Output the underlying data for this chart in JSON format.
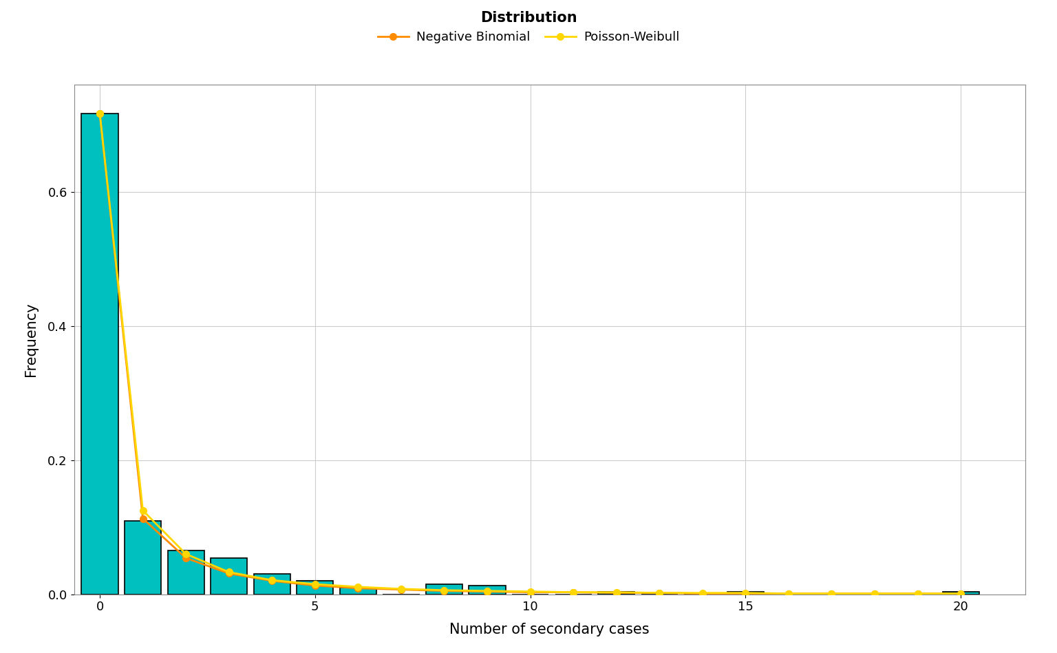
{
  "bar_x": [
    0,
    1,
    2,
    3,
    4,
    5,
    6,
    7,
    8,
    9,
    10,
    11,
    12,
    13,
    14,
    15,
    16,
    17,
    18,
    19,
    20
  ],
  "bar_heights": [
    0.717,
    0.109,
    0.065,
    0.054,
    0.03,
    0.02,
    0.01,
    0.0,
    0.015,
    0.013,
    0.0,
    0.0,
    0.004,
    0.0,
    0.0,
    0.004,
    0.0,
    0.0,
    0.0,
    0.0,
    0.004
  ],
  "bar_color": "#00BFBF",
  "bar_edgecolor": "#000000",
  "bar_width": 0.85,
  "neg_binom_x": [
    0,
    1,
    2,
    3,
    4,
    5,
    6,
    7,
    8,
    9,
    10,
    11,
    12,
    13,
    14,
    15,
    16,
    17,
    18,
    19,
    20
  ],
  "neg_binom_y": [
    0.717,
    0.113,
    0.054,
    0.031,
    0.02,
    0.013,
    0.009,
    0.007,
    0.005,
    0.004,
    0.003,
    0.003,
    0.002,
    0.002,
    0.001,
    0.001,
    0.001,
    0.001,
    0.001,
    0.001,
    0.001
  ],
  "neg_binom_color": "#FF8C00",
  "poisson_weibull_x": [
    0,
    1,
    2,
    3,
    4,
    5,
    6,
    7,
    8,
    9,
    10,
    11,
    12,
    13,
    14,
    15,
    16,
    17,
    18,
    19,
    20
  ],
  "poisson_weibull_y": [
    0.717,
    0.125,
    0.06,
    0.033,
    0.021,
    0.015,
    0.011,
    0.008,
    0.006,
    0.005,
    0.004,
    0.003,
    0.003,
    0.002,
    0.002,
    0.002,
    0.001,
    0.001,
    0.001,
    0.001,
    0.001
  ],
  "poisson_weibull_color": "#FFD700",
  "line_style": "-",
  "marker_style": "o",
  "marker_size": 7,
  "line_width": 2.0,
  "xlabel": "Number of secondary cases",
  "ylabel": "Frequency",
  "xlabel_fontsize": 15,
  "ylabel_fontsize": 15,
  "xlim": [
    -0.6,
    21.5
  ],
  "ylim": [
    0,
    0.76
  ],
  "yticks": [
    0.0,
    0.2,
    0.4,
    0.6
  ],
  "xticks": [
    0,
    5,
    10,
    15,
    20
  ],
  "legend_title": "Distribution",
  "legend_neg_binom": "Negative Binomial",
  "legend_poisson_weibull": "Poisson-Weibull",
  "bg_color": "#FFFFFF",
  "grid_color": "#CCCCCC",
  "title_fontsize": 15,
  "legend_fontsize": 13,
  "tick_fontsize": 13,
  "fig_width": 15.36,
  "fig_height": 9.49
}
